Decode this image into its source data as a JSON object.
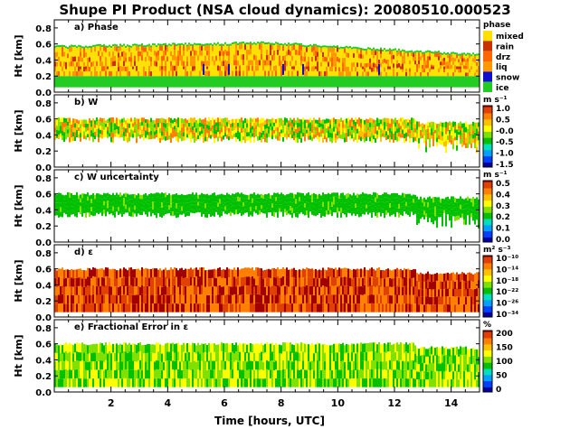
{
  "title": "Shupe PI Product (NSA cloud dynamics): 20080510.000523",
  "xlabel": "Time [hours, UTC]",
  "colors": {
    "phase": {
      "ice": "#22cc22",
      "snow": "#1010cc",
      "liq": "#ff9800",
      "drz": "#ff6600",
      "rain": "#c83200",
      "mixed": "#ffe000"
    },
    "rainbow": [
      "#0000a0",
      "#0040ff",
      "#00a0ff",
      "#00e0c0",
      "#00c000",
      "#80e000",
      "#ffff00",
      "#ffc000",
      "#ff8000",
      "#e04000",
      "#a00000"
    ]
  },
  "chart_data": [
    {
      "id": "a",
      "type": "heatmap",
      "panel_label": "a) Phase",
      "ylabel": "Ht [km]",
      "ylim": [
        0.0,
        0.9
      ],
      "yticks": [
        "0.8",
        "0.6",
        "0.4",
        "0.2",
        "0.0"
      ],
      "xlim": [
        0,
        15
      ],
      "xticks": [
        "2",
        "4",
        "6",
        "8",
        "10",
        "12",
        "14"
      ],
      "colorbar": {
        "kind": "categorical",
        "title": "phase",
        "labels": [
          "mixed",
          "rain",
          "drz",
          "liq",
          "snow",
          "ice"
        ],
        "colors": [
          "#ffe000",
          "#c83200",
          "#ff6600",
          "#ff9800",
          "#1010cc",
          "#22cc22"
        ]
      },
      "features": {
        "cloud_top_km": [
          0.55,
          0.6,
          0.45
        ],
        "cloud_base_km": 0.06,
        "ice_layer_top_km": 0.2,
        "rain_line_km": 0.3
      }
    },
    {
      "id": "b",
      "type": "heatmap",
      "panel_label": "b) W",
      "ylabel": "Ht [km]",
      "ylim": [
        0.0,
        0.9
      ],
      "yticks": [
        "0.8",
        "0.6",
        "0.4",
        "0.2",
        "0.0"
      ],
      "xlim": [
        0,
        15
      ],
      "xticks": [
        "2",
        "4",
        "6",
        "8",
        "10",
        "12",
        "14"
      ],
      "colorbar": {
        "kind": "continuous",
        "title": "m s⁻¹",
        "labels": [
          "1.0",
          "0.5",
          "-0.0",
          "-0.5",
          "-1.0",
          "-1.5"
        ],
        "range": [
          -1.5,
          1.0
        ]
      },
      "features": {
        "layer_km": [
          0.3,
          0.6
        ]
      }
    },
    {
      "id": "c",
      "type": "heatmap",
      "panel_label": "c) W uncertainty",
      "ylabel": "Ht [km]",
      "ylim": [
        0.0,
        0.9
      ],
      "yticks": [
        "0.8",
        "0.6",
        "0.4",
        "0.2",
        "0.0"
      ],
      "xlim": [
        0,
        15
      ],
      "xticks": [
        "2",
        "4",
        "6",
        "8",
        "10",
        "12",
        "14"
      ],
      "colorbar": {
        "kind": "continuous",
        "title": "m s⁻¹",
        "labels": [
          "0.5",
          "0.4",
          "0.3",
          "0.2",
          "0.1",
          "0.0"
        ],
        "range": [
          0.0,
          0.5
        ]
      },
      "features": {
        "layer_km": [
          0.3,
          0.6
        ]
      }
    },
    {
      "id": "d",
      "type": "heatmap",
      "panel_label": "d) ε",
      "ylabel": "Ht [km]",
      "ylim": [
        0.0,
        0.9
      ],
      "yticks": [
        "0.8",
        "0.6",
        "0.4",
        "0.2",
        "0.0"
      ],
      "xlim": [
        0,
        15
      ],
      "xticks": [
        "2",
        "4",
        "6",
        "8",
        "10",
        "12",
        "14"
      ],
      "colorbar": {
        "kind": "continuous",
        "title": "m² s⁻³",
        "labels": [
          "10⁻¹⁰",
          "10⁻¹⁴",
          "10⁻¹⁸",
          "10⁻²²",
          "10⁻²⁶",
          "10⁻³⁴"
        ]
      },
      "features": {
        "layer_km": [
          0.06,
          0.6
        ]
      }
    },
    {
      "id": "e",
      "type": "heatmap",
      "panel_label": "e) Fractional Error in ε",
      "ylabel": "Ht [km]",
      "ylim": [
        0.0,
        0.9
      ],
      "yticks": [
        "0.8",
        "0.6",
        "0.4",
        "0.2",
        "0.0"
      ],
      "xlim": [
        0,
        15
      ],
      "xticks": [
        "2",
        "4",
        "6",
        "8",
        "10",
        "12",
        "14"
      ],
      "colorbar": {
        "kind": "continuous",
        "title": "%",
        "labels": [
          "200",
          "150",
          "100",
          "50",
          "0"
        ],
        "range": [
          0,
          200
        ]
      },
      "features": {
        "layer_km": [
          0.06,
          0.6
        ]
      }
    }
  ]
}
